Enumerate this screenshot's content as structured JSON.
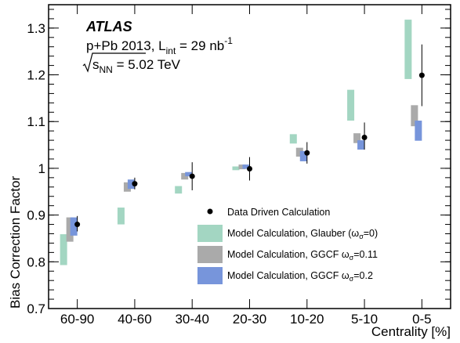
{
  "chart_data": {
    "type": "scatter",
    "experiment": "ATLAS",
    "info_line1_prefix": "p+Pb 2013, L",
    "info_line1_sub": "int",
    "info_line1_mid": " = 29 nb",
    "info_line1_sup": "-1",
    "info_line2_s": "s",
    "info_line2_sub": "NN",
    "info_line2_suffix": " = 5.02 TeV",
    "xlabel": "Centrality [%]",
    "ylabel": "Bias Correction Factor",
    "categories": [
      "60-90",
      "40-60",
      "30-40",
      "20-30",
      "10-20",
      "5-10",
      "0-5"
    ],
    "ylim": [
      0.7,
      1.35
    ],
    "yticks": [
      "0.7",
      "0.8",
      "0.9",
      "1",
      "1.1",
      "1.2",
      "1.3"
    ],
    "legend_position": "bottom-right",
    "colors": {
      "data": "#000000",
      "glauber": "#a3d6c2",
      "ggcf011": "#aaaaaa",
      "ggcf02": "#7795db"
    },
    "series": [
      {
        "name": "Data Driven Calculation",
        "kind": "points",
        "values": [
          0.88,
          0.967,
          0.983,
          0.999,
          1.033,
          1.066,
          1.199
        ],
        "err_low": [
          0.015,
          0.012,
          0.03,
          0.025,
          0.023,
          0.026,
          0.066
        ],
        "err_high": [
          0.018,
          0.013,
          0.03,
          0.025,
          0.023,
          0.032,
          0.066
        ]
      },
      {
        "name": "Model Calculation, Glauber (",
        "name_omega": "ω",
        "name_sigma": "σ",
        "name_suffix": "=0)",
        "kind": "bands",
        "low": [
          0.793,
          0.88,
          0.946,
          0.996,
          1.053,
          1.102,
          1.191
        ],
        "high": [
          0.859,
          0.916,
          0.962,
          1.004,
          1.073,
          1.168,
          1.318
        ]
      },
      {
        "name": "Model Calculation, GGCF ",
        "name_omega": "ω",
        "name_sigma": "σ",
        "name_suffix": "=0.11",
        "kind": "bands",
        "low": [
          0.843,
          0.95,
          0.976,
          0.998,
          1.025,
          1.054,
          1.09
        ],
        "high": [
          0.895,
          0.97,
          0.99,
          1.008,
          1.044,
          1.075,
          1.135
        ]
      },
      {
        "name": "Model Calculation, GGCF ",
        "name_omega": "ω",
        "name_sigma": "σ",
        "name_suffix": "=0.2",
        "kind": "bands",
        "low": [
          0.856,
          0.956,
          0.983,
          0.999,
          1.015,
          1.04,
          1.059
        ],
        "high": [
          0.895,
          0.976,
          0.992,
          1.008,
          1.037,
          1.06,
          1.102
        ]
      }
    ]
  }
}
